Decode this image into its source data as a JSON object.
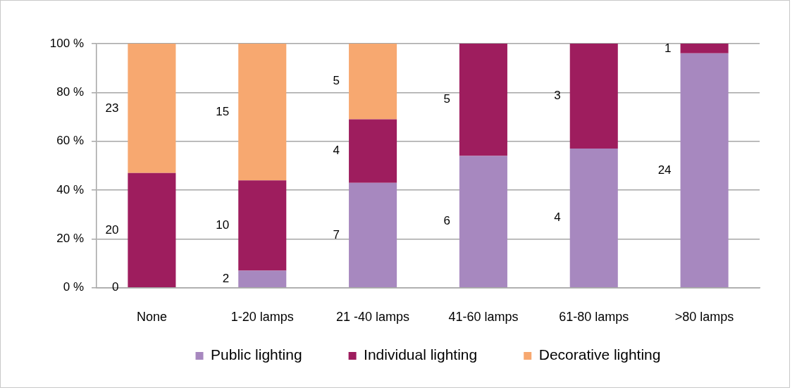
{
  "chart_data": {
    "type": "bar",
    "categories": [
      "None",
      "1-20 lamps",
      "21 -40 lamps",
      "41-60 lamps",
      "61-80 lamps",
      ">80 lamps"
    ],
    "stacked": true,
    "ylim": [
      0,
      100
    ],
    "yticks": [
      {
        "value": 0,
        "label": "0 %"
      },
      {
        "value": 20,
        "label": "20 %"
      },
      {
        "value": 40,
        "label": "40 %"
      },
      {
        "value": 60,
        "label": "60 %"
      },
      {
        "value": 80,
        "label": "80 %"
      },
      {
        "value": 100,
        "label": "100 %"
      }
    ],
    "grid": "y",
    "legend": "bottom",
    "series": [
      {
        "name": "Public lighting",
        "color": "#a788bf",
        "values": [
          0,
          7,
          43,
          54,
          57,
          96
        ]
      },
      {
        "name": "Individual lighting",
        "color": "#9e1d5e",
        "values": [
          47,
          37,
          26,
          46,
          43,
          4
        ]
      },
      {
        "name": "Decorative lighting",
        "color": "#f7a870",
        "values": [
          53,
          56,
          31,
          null,
          null,
          null
        ]
      }
    ],
    "annotations": [
      "0",
      "20",
      "23",
      "2",
      "10",
      "15",
      "7",
      "4",
      "5",
      "6",
      "5",
      "4",
      "3",
      "24",
      "1"
    ]
  }
}
